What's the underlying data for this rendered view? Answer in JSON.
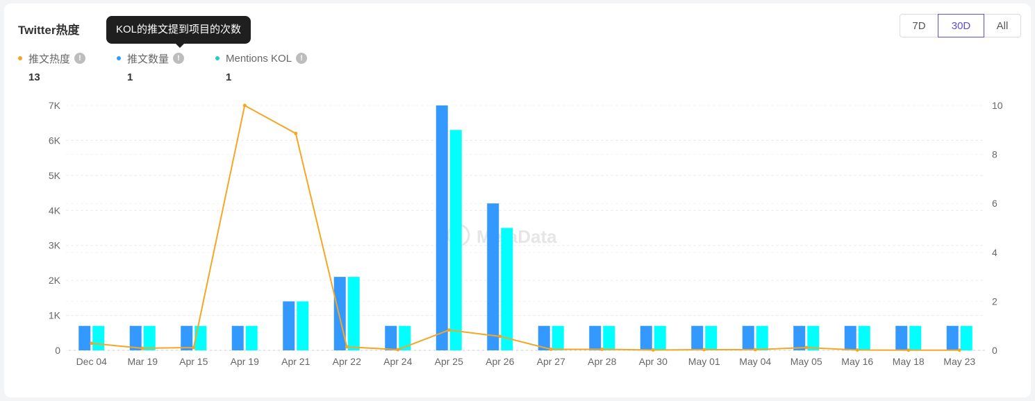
{
  "title": "Twitter热度",
  "tooltip": "KOL的推文提到项目的次数",
  "range_buttons": [
    "7D",
    "30D",
    "All"
  ],
  "selected_range": "30D",
  "legend": [
    {
      "label": "推文热度",
      "value": "13",
      "color": "#f5a623"
    },
    {
      "label": "推文数量",
      "value": "1",
      "color": "#3399ff"
    },
    {
      "label": "Mentions KOL",
      "value": "1",
      "color": "#19d1c8"
    }
  ],
  "info_glyph": "!",
  "watermark": "MetaData",
  "colors": {
    "line": "#f5a623",
    "bar1": "#3399ff",
    "bar2": "#00ffff",
    "accent": "#5b4fd1"
  },
  "chart_data": {
    "type": "bar",
    "categories": [
      "Dec 04",
      "Mar 19",
      "Apr 15",
      "Apr 19",
      "Apr 21",
      "Apr 22",
      "Apr 24",
      "Apr 25",
      "Apr 26",
      "Apr 27",
      "Apr 28",
      "Apr 30",
      "May 01",
      "May 04",
      "May 05",
      "May 16",
      "May 18",
      "May 23"
    ],
    "left_axis": {
      "ticks": [
        "0",
        "1K",
        "2K",
        "3K",
        "4K",
        "5K",
        "6K",
        "7K"
      ],
      "ylim": [
        0,
        7000
      ]
    },
    "right_axis": {
      "ticks": [
        "0",
        "2",
        "4",
        "6",
        "8",
        "10"
      ],
      "ylim": [
        0,
        10
      ]
    },
    "series": [
      {
        "name": "推文热度",
        "type": "line",
        "axis": "left",
        "values": [
          200,
          60,
          80,
          7000,
          6200,
          100,
          20,
          580,
          400,
          30,
          30,
          10,
          20,
          20,
          80,
          10,
          5,
          5
        ]
      },
      {
        "name": "推文数量",
        "type": "bar",
        "axis": "right",
        "values": [
          1,
          1,
          1,
          1,
          2,
          3,
          1,
          10,
          6,
          1,
          1,
          1,
          1,
          1,
          1,
          1,
          1,
          1
        ]
      },
      {
        "name": "Mentions KOL",
        "type": "bar",
        "axis": "right",
        "values": [
          1,
          1,
          1,
          1,
          2,
          3,
          1,
          9,
          5,
          1,
          1,
          1,
          1,
          1,
          1,
          1,
          1,
          1
        ]
      }
    ],
    "grid": true,
    "legend_position": "top-left"
  }
}
